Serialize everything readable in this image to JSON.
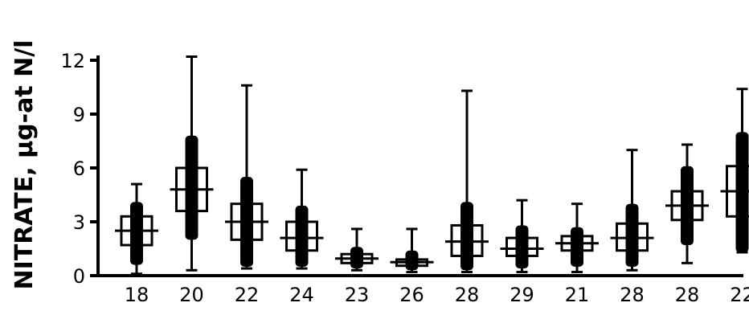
{
  "chart_data": {
    "type": "boxplot",
    "ylabel": "NITRATE, µg-at N/l",
    "ylim": [
      0,
      12
    ],
    "yticks": [
      0,
      3,
      6,
      9,
      12
    ],
    "categories": [
      "18",
      "20",
      "22",
      "24",
      "23",
      "26",
      "28",
      "29",
      "21",
      "28",
      "28",
      "22"
    ],
    "boxes": [
      {
        "whisker_min": 0.1,
        "whisker_max": 5.1,
        "bar_min": 0.6,
        "bar_max": 4.1,
        "box_min": 1.7,
        "box_max": 3.3,
        "center": 2.5
      },
      {
        "whisker_min": 0.3,
        "whisker_max": 12.2,
        "bar_min": 2.0,
        "bar_max": 7.8,
        "box_min": 3.6,
        "box_max": 6.0,
        "center": 4.8
      },
      {
        "whisker_min": 0.4,
        "whisker_max": 10.6,
        "bar_min": 0.5,
        "bar_max": 5.5,
        "box_min": 2.0,
        "box_max": 4.0,
        "center": 3.0
      },
      {
        "whisker_min": 0.4,
        "whisker_max": 5.9,
        "bar_min": 0.5,
        "bar_max": 3.9,
        "box_min": 1.4,
        "box_max": 3.0,
        "center": 2.1
      },
      {
        "whisker_min": 0.3,
        "whisker_max": 2.6,
        "bar_min": 0.4,
        "bar_max": 1.6,
        "box_min": 0.7,
        "box_max": 1.2,
        "center": 0.95
      },
      {
        "whisker_min": 0.2,
        "whisker_max": 2.6,
        "bar_min": 0.3,
        "bar_max": 1.4,
        "box_min": 0.55,
        "box_max": 0.9,
        "center": 0.75
      },
      {
        "whisker_min": 0.2,
        "whisker_max": 10.3,
        "bar_min": 0.3,
        "bar_max": 4.1,
        "box_min": 1.1,
        "box_max": 2.8,
        "center": 1.9
      },
      {
        "whisker_min": 0.2,
        "whisker_max": 4.2,
        "bar_min": 0.4,
        "bar_max": 2.8,
        "box_min": 1.1,
        "box_max": 2.1,
        "center": 1.5
      },
      {
        "whisker_min": 0.2,
        "whisker_max": 4.0,
        "bar_min": 0.5,
        "bar_max": 2.7,
        "box_min": 1.4,
        "box_max": 2.2,
        "center": 1.8
      },
      {
        "whisker_min": 0.3,
        "whisker_max": 7.0,
        "bar_min": 0.5,
        "bar_max": 4.0,
        "box_min": 1.4,
        "box_max": 2.9,
        "center": 2.1
      },
      {
        "whisker_min": 0.7,
        "whisker_max": 7.3,
        "bar_min": 1.7,
        "bar_max": 6.1,
        "box_min": 3.1,
        "box_max": 4.7,
        "center": 3.9
      },
      {
        "whisker_min": 1.3,
        "whisker_max": 10.4,
        "bar_min": 1.3,
        "bar_max": 8.0,
        "box_min": 3.3,
        "box_max": 6.1,
        "center": 4.7
      }
    ],
    "grid": false,
    "legend": "none"
  }
}
